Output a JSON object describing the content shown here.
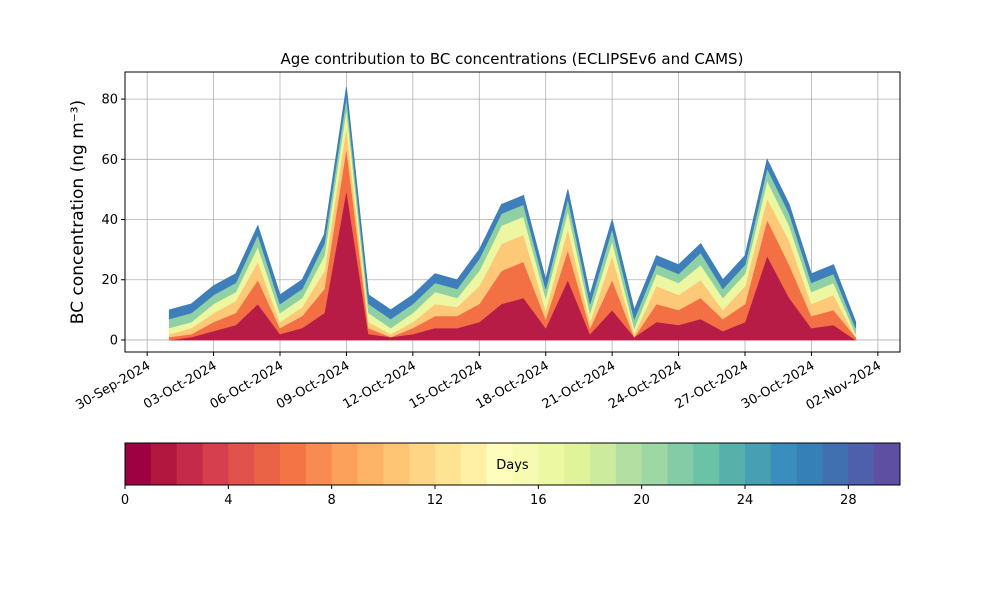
{
  "chart_data": {
    "type": "stacked_area",
    "title": "Age contribution to BC concentrations (ECLIPSEv6 and CAMS)",
    "ylabel": "BC concentration (ng m⁻³)",
    "x": [
      "2024-10-01",
      "2024-10-02",
      "2024-10-03",
      "2024-10-04",
      "2024-10-05",
      "2024-10-06",
      "2024-10-07",
      "2024-10-08",
      "2024-10-09",
      "2024-10-10",
      "2024-10-11",
      "2024-10-12",
      "2024-10-13",
      "2024-10-14",
      "2024-10-15",
      "2024-10-16",
      "2024-10-17",
      "2024-10-18",
      "2024-10-19",
      "2024-10-20",
      "2024-10-21",
      "2024-10-22",
      "2024-10-23",
      "2024-10-24",
      "2024-10-25",
      "2024-10-26",
      "2024-10-27",
      "2024-10-28",
      "2024-10-29",
      "2024-10-30",
      "2024-10-31",
      "2024-11-01"
    ],
    "series": [
      {
        "color": "#b71c47",
        "values": [
          0,
          1,
          3,
          5,
          12,
          2,
          4,
          9,
          50,
          2,
          1,
          2,
          4,
          4,
          6,
          12,
          14,
          4,
          20,
          2,
          10,
          1,
          6,
          5,
          7,
          3,
          6,
          28,
          14,
          4,
          5,
          0
        ]
      },
      {
        "color": "#f36f44",
        "values": [
          1,
          1,
          3,
          4,
          8,
          2,
          4,
          8,
          14,
          2,
          0,
          2,
          4,
          4,
          6,
          11,
          12,
          3,
          10,
          2,
          10,
          0,
          6,
          5,
          7,
          4,
          6,
          12,
          11,
          4,
          5,
          1
        ]
      },
      {
        "color": "#fdc877",
        "values": [
          1,
          2,
          3,
          4,
          6,
          2,
          3,
          6,
          7,
          2,
          1,
          2,
          4,
          3,
          6,
          9,
          9,
          3,
          7,
          2,
          8,
          1,
          6,
          5,
          6,
          3,
          6,
          7,
          8,
          4,
          5,
          0
        ]
      },
      {
        "color": "#edf7a2",
        "values": [
          2,
          2,
          3,
          3,
          5,
          3,
          3,
          5,
          6,
          3,
          2,
          3,
          4,
          3,
          5,
          6,
          6,
          4,
          6,
          3,
          5,
          2,
          4,
          4,
          5,
          4,
          4,
          6,
          5,
          4,
          4,
          1
        ]
      },
      {
        "color": "#8fd1a4",
        "values": [
          3,
          3,
          3,
          3,
          4,
          3,
          3,
          4,
          4,
          3,
          3,
          3,
          3,
          3,
          4,
          4,
          4,
          3,
          4,
          3,
          4,
          3,
          3,
          3,
          4,
          3,
          3,
          4,
          4,
          3,
          3,
          2
        ]
      },
      {
        "color": "#3e7fbb",
        "values": [
          3,
          3,
          3,
          3,
          3,
          3,
          3,
          3,
          3,
          3,
          3,
          3,
          3,
          3,
          3,
          3,
          3,
          3,
          3,
          3,
          3,
          3,
          3,
          3,
          3,
          3,
          3,
          3,
          3,
          3,
          3,
          2
        ]
      }
    ],
    "xlim": [
      "2024-09-29",
      "2024-11-03"
    ],
    "xticks": [
      {
        "value": "2024-09-30",
        "label": "30-Sep-2024"
      },
      {
        "value": "2024-10-03",
        "label": "03-Oct-2024"
      },
      {
        "value": "2024-10-06",
        "label": "06-Oct-2024"
      },
      {
        "value": "2024-10-09",
        "label": "09-Oct-2024"
      },
      {
        "value": "2024-10-12",
        "label": "12-Oct-2024"
      },
      {
        "value": "2024-10-15",
        "label": "15-Oct-2024"
      },
      {
        "value": "2024-10-18",
        "label": "18-Oct-2024"
      },
      {
        "value": "2024-10-21",
        "label": "21-Oct-2024"
      },
      {
        "value": "2024-10-24",
        "label": "24-Oct-2024"
      },
      {
        "value": "2024-10-27",
        "label": "27-Oct-2024"
      },
      {
        "value": "2024-10-30",
        "label": "30-Oct-2024"
      },
      {
        "value": "2024-11-02",
        "label": "02-Nov-2024"
      }
    ],
    "ylim": [
      -4,
      89
    ],
    "yticks": [
      0,
      20,
      40,
      60,
      80
    ],
    "grid": true,
    "colorbar": {
      "label": "Days",
      "lim": [
        0,
        30
      ],
      "ticks": [
        0,
        4,
        8,
        12,
        16,
        20,
        24,
        28
      ],
      "colors": [
        "#9e0142",
        "#b2183f",
        "#c52a4b",
        "#d6404e",
        "#e0524a",
        "#ea6346",
        "#f47446",
        "#f88b51",
        "#fba15b",
        "#fdb466",
        "#fec574",
        "#fed585",
        "#fee492",
        "#fff0a6",
        "#fffdbb",
        "#f7fbb2",
        "#edf8a2",
        "#e1f399",
        "#cdeb9c",
        "#b3e0a2",
        "#9dd7a4",
        "#83cca5",
        "#6bc3a5",
        "#58b0ab",
        "#469fb3",
        "#3a8ebd",
        "#3680b8",
        "#4170b0",
        "#4e5fab",
        "#5e4fa2"
      ]
    }
  }
}
